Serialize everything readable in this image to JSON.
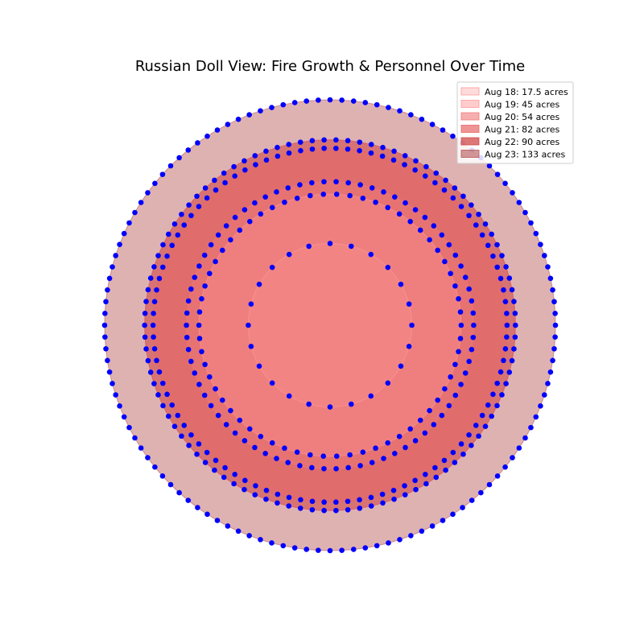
{
  "chart_data": {
    "type": "nested-circles",
    "title": "Russian Doll View: Fire Growth & Personnel Over Time",
    "legend_position": "top-right",
    "grid": false,
    "series": [
      {
        "label": "Aug 18: 17.5 acres",
        "acres": 17.5,
        "markers": 24,
        "fill": "#ff9999",
        "opacity": 0.2
      },
      {
        "label": "Aug 19: 45 acres",
        "acres": 45,
        "markers": 62,
        "fill": "#ff9999",
        "opacity": 0.35
      },
      {
        "label": "Aug 20: 54 acres",
        "acres": 54,
        "markers": 74,
        "fill": "#f07a7a",
        "opacity": 0.45
      },
      {
        "label": "Aug 21: 82 acres",
        "acres": 82,
        "markers": 94,
        "fill": "#e86666",
        "opacity": 0.55
      },
      {
        "label": "Aug 22: 90 acres",
        "acres": 90,
        "markers": 98,
        "fill": "#d24a4a",
        "opacity": 0.6
      },
      {
        "label": "Aug 23: 133 acres",
        "acres": 133,
        "markers": 120,
        "fill": "#b85555",
        "opacity": 0.45
      }
    ],
    "marker_color": "#0000ff"
  }
}
